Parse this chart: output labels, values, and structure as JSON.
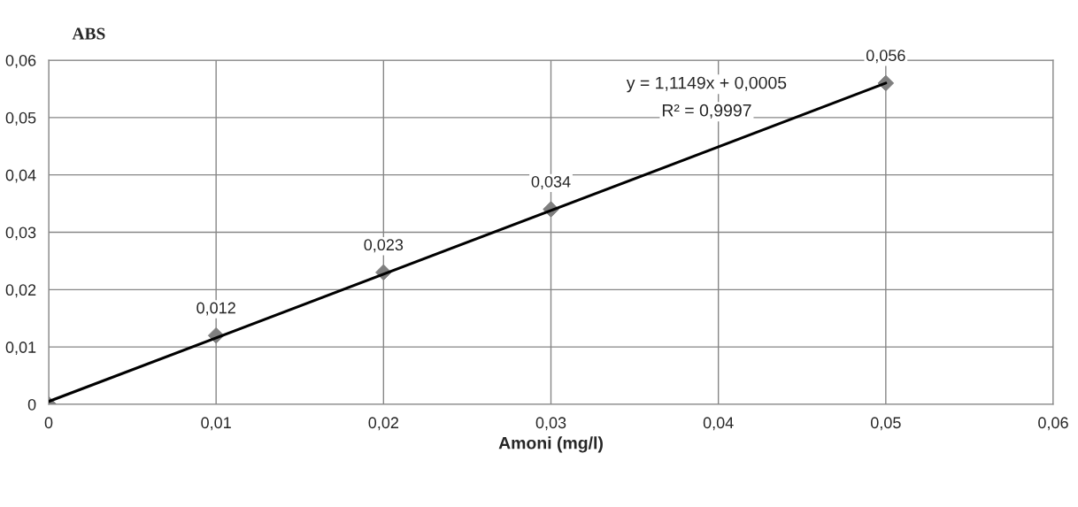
{
  "chart_data": {
    "type": "scatter",
    "ylabel": "ABS",
    "xlabel": "Amoni (mg/l)",
    "xlim": [
      0,
      0.06
    ],
    "ylim": [
      0,
      0.06
    ],
    "xticks": [
      {
        "value": 0,
        "label": "0"
      },
      {
        "value": 0.01,
        "label": "0,01"
      },
      {
        "value": 0.02,
        "label": "0,02"
      },
      {
        "value": 0.03,
        "label": "0,03"
      },
      {
        "value": 0.04,
        "label": "0,04"
      },
      {
        "value": 0.05,
        "label": "0,05"
      },
      {
        "value": 0.06,
        "label": "0,06"
      }
    ],
    "yticks": [
      {
        "value": 0,
        "label": "0"
      },
      {
        "value": 0.01,
        "label": "0,01"
      },
      {
        "value": 0.02,
        "label": "0,02"
      },
      {
        "value": 0.03,
        "label": "0,03"
      },
      {
        "value": 0.04,
        "label": "0,04"
      },
      {
        "value": 0.05,
        "label": "0,05"
      },
      {
        "value": 0.06,
        "label": "0,06"
      }
    ],
    "grid": true,
    "marker": "diamond",
    "series": [
      {
        "color": "#7f7f7f",
        "x": [
          0,
          0.01,
          0.02,
          0.03,
          0.05
        ],
        "values": [
          0,
          0.012,
          0.023,
          0.034,
          0.056
        ],
        "value_labels": [
          null,
          "0,012",
          "0,023",
          "0,034",
          "0,056"
        ]
      },
      {
        "type": "line",
        "color": "#000000",
        "x": [
          0,
          0.05
        ],
        "values": [
          0.0005,
          0.056
        ],
        "line_style": "solid",
        "marker": "none"
      }
    ],
    "annotations": [
      "y = 1,1149x + 0,0005",
      "R² = 0,9997"
    ]
  }
}
